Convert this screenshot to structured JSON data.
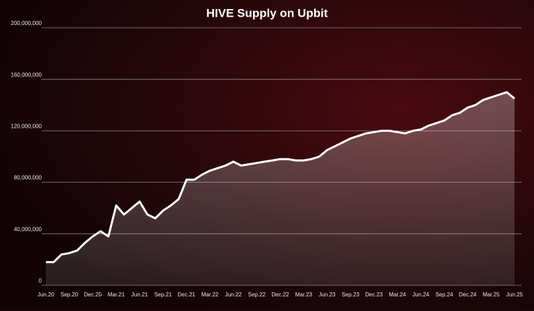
{
  "chart_data": {
    "type": "area",
    "title": "HIVE Supply on Upbit",
    "categories": [
      "Jun.20",
      null,
      null,
      "Sep.20",
      null,
      null,
      "Dec.20",
      null,
      null,
      "Mar.21",
      null,
      null,
      "Jun.21",
      null,
      null,
      "Sep.21",
      null,
      null,
      "Dec.21",
      null,
      null,
      "Mar.22",
      null,
      null,
      "Jun.22",
      null,
      null,
      "Sep.22",
      null,
      null,
      "Dec.22",
      null,
      null,
      "Mar.23",
      null,
      null,
      "Jun.23",
      null,
      null,
      "Sep.23",
      null,
      null,
      "Dec.23",
      null,
      null,
      "Mar.24",
      null,
      null,
      "Jun.24",
      null,
      null,
      "Sep.24",
      null,
      null,
      "Dec.24",
      null,
      null,
      "Mar.25",
      null,
      null,
      "Jun.25"
    ],
    "series": [
      {
        "color": "#ffffff",
        "values": [
          18000000,
          18000000,
          24000000,
          25000000,
          27000000,
          33000000,
          38000000,
          42000000,
          38000000,
          62000000,
          55000000,
          60000000,
          65000000,
          55000000,
          52000000,
          58000000,
          62000000,
          67000000,
          82000000,
          82000000,
          86000000,
          89000000,
          91000000,
          93000000,
          96000000,
          93000000,
          94000000,
          95000000,
          96000000,
          97000000,
          98000000,
          98000000,
          97000000,
          97000000,
          98000000,
          100000000,
          105000000,
          108000000,
          111000000,
          114000000,
          116000000,
          118000000,
          119000000,
          120000000,
          120000000,
          119000000,
          118000000,
          120000000,
          121000000,
          124000000,
          126000000,
          128000000,
          132000000,
          134000000,
          138000000,
          140000000,
          144000000,
          146000000,
          148000000,
          150000000,
          145000000
        ]
      }
    ],
    "ylim": [
      0,
      200000000
    ],
    "yticks": [
      0,
      {
        "value": 40000000,
        "label": "40,000,000"
      },
      {
        "value": 80000000,
        "label": "80,000,000"
      },
      {
        "value": 120000000,
        "label": "120,000,000"
      },
      {
        "value": 160000000,
        "label": "160,000,000"
      },
      {
        "value": 200000000,
        "label": "200,000,000"
      }
    ],
    "grid": true
  }
}
